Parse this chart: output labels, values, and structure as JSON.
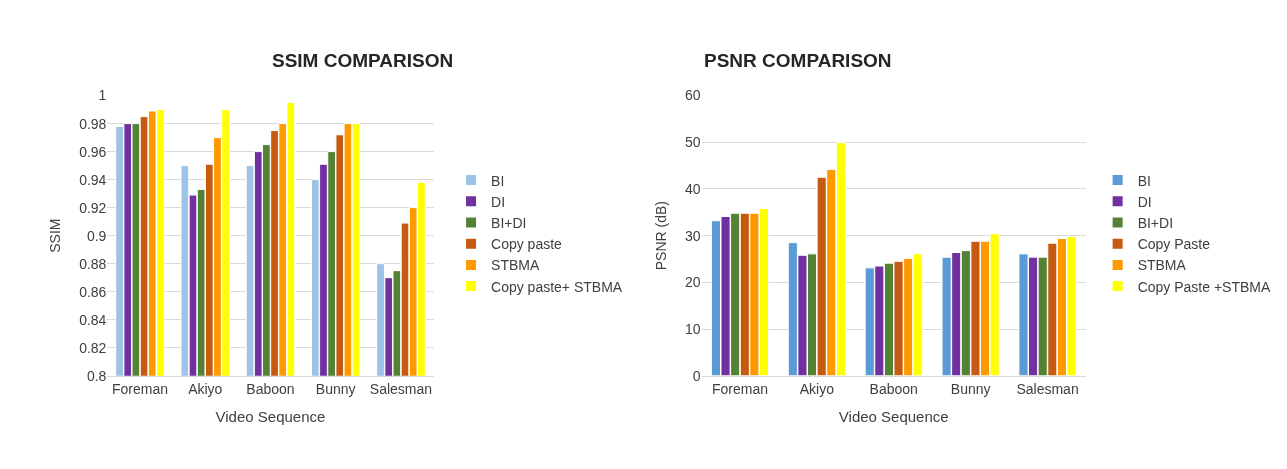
{
  "chart_data": [
    {
      "type": "bar",
      "title": "SSIM COMPARISON",
      "xlabel": "Video Sequence",
      "ylabel": "SSIM",
      "categories": [
        "Foreman",
        "Akiyo",
        "Baboon",
        "Bunny",
        "Salesman"
      ],
      "ylim": [
        0.8,
        1
      ],
      "yticks": [
        0.8,
        0.82,
        0.84,
        0.86,
        0.88,
        0.9,
        0.92,
        0.94,
        0.96,
        0.98,
        1
      ],
      "grid": "y",
      "legend": "right",
      "series": [
        {
          "name": "BI",
          "color": "#9dc3e6",
          "values": [
            0.978,
            0.95,
            0.95,
            0.94,
            0.88
          ]
        },
        {
          "name": "DI",
          "color": "#7030a0",
          "values": [
            0.98,
            0.929,
            0.96,
            0.951,
            0.87
          ]
        },
        {
          "name": "BI+DI",
          "color": "#548235",
          "values": [
            0.98,
            0.933,
            0.965,
            0.96,
            0.875
          ]
        },
        {
          "name": "Copy paste",
          "color": "#c55a11",
          "values": [
            0.985,
            0.951,
            0.975,
            0.972,
            0.909
          ]
        },
        {
          "name": "STBMA",
          "color": "#ff9900",
          "values": [
            0.989,
            0.97,
            0.98,
            0.98,
            0.92
          ]
        },
        {
          "name": "Copy paste+ STBMA",
          "color": "#ffff00",
          "values": [
            0.99,
            0.99,
            0.995,
            0.98,
            0.938
          ]
        }
      ]
    },
    {
      "type": "bar",
      "title": "PSNR COMPARISON",
      "xlabel": "Video Sequence",
      "ylabel": "PSNR (dB)",
      "categories": [
        "Foreman",
        "Akiyo",
        "Baboon",
        "Bunny",
        "Salesman"
      ],
      "ylim": [
        0,
        60
      ],
      "yticks": [
        0,
        10,
        20,
        30,
        40,
        50,
        60
      ],
      "grid": "y",
      "legend": "right",
      "series": [
        {
          "name": "BI",
          "color": "#5b9bd5",
          "values": [
            33.2,
            28.5,
            23.1,
            25.4,
            26.1
          ]
        },
        {
          "name": "DI",
          "color": "#7030a0",
          "values": [
            34.1,
            25.8,
            23.5,
            26.4,
            25.4
          ]
        },
        {
          "name": "BI+DI",
          "color": "#548235",
          "values": [
            34.8,
            26.1,
            24.1,
            26.8,
            25.4
          ]
        },
        {
          "name": "Copy Paste",
          "color": "#c55a11",
          "values": [
            34.8,
            42.5,
            24.5,
            28.8,
            28.4
          ]
        },
        {
          "name": "STBMA",
          "color": "#ff9900",
          "values": [
            34.8,
            44.2,
            25.1,
            28.8,
            29.4
          ]
        },
        {
          "name": "Copy Paste +STBMA",
          "color": "#ffff00",
          "values": [
            35.8,
            49.9,
            26.1,
            30.4,
            29.8
          ]
        }
      ]
    }
  ]
}
